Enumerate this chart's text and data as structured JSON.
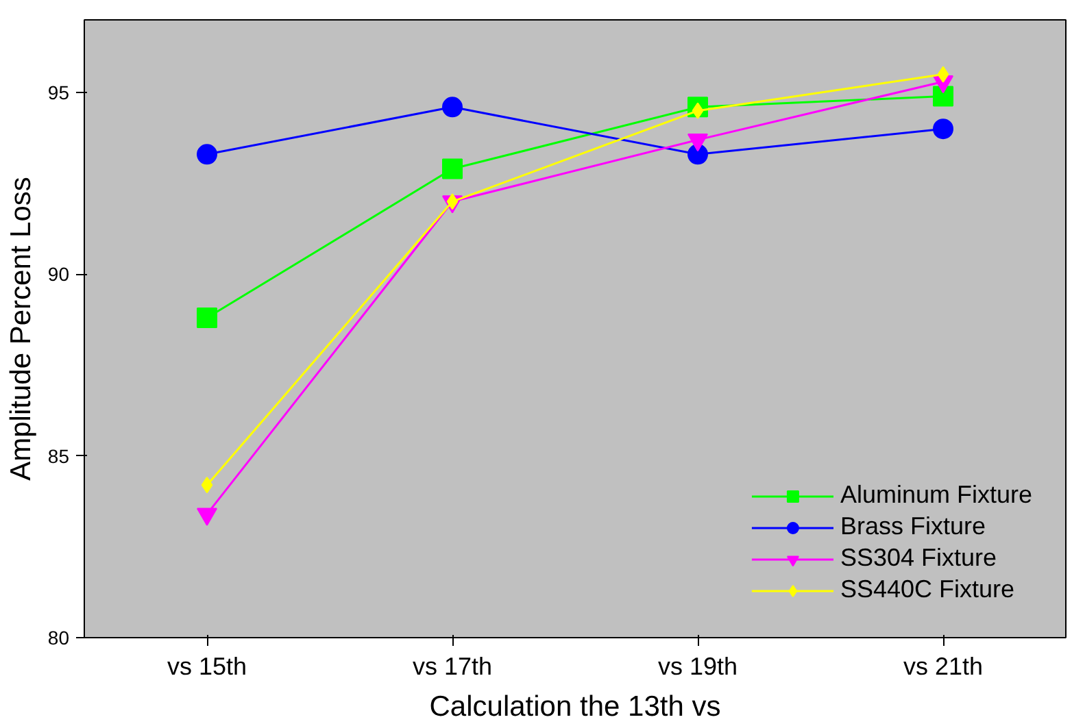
{
  "chart_data": {
    "type": "line",
    "xlabel": "Calculation the 13th vs",
    "ylabel": "Amplitude Percent Loss",
    "categories": [
      "vs 15th",
      "vs 17th",
      "vs 19th",
      "vs 21th"
    ],
    "ylim": [
      80,
      97
    ],
    "yticks": [
      80,
      85,
      90,
      95
    ],
    "grid": false,
    "legend": "bottom right",
    "line_style": "solid",
    "series": [
      {
        "name": "Aluminum Fixture",
        "color": "#00ff00",
        "marker": "square",
        "values": [
          88.8,
          92.9,
          94.6,
          94.9
        ]
      },
      {
        "name": "Brass Fixture",
        "color": "#0000ff",
        "marker": "circle",
        "values": [
          93.3,
          94.6,
          93.3,
          94.0
        ]
      },
      {
        "name": "SS304 Fixture",
        "color": "#ff00ff",
        "marker": "triangle_down",
        "values": [
          83.4,
          92.0,
          93.7,
          95.3
        ]
      },
      {
        "name": "SS440C Fixture",
        "color": "#ffff00",
        "marker": "diamond",
        "values": [
          84.2,
          92.0,
          94.5,
          95.5
        ]
      }
    ]
  }
}
